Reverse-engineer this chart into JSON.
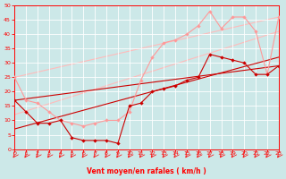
{
  "bg_color": "#cce8e8",
  "grid_color": "#ffffff",
  "line_dark": "#cc0000",
  "line_light": "#ff9999",
  "line_lighter": "#ffbbbb",
  "xlabel": "Vent moyen/en rafales ( km/h )",
  "xlim": [
    0,
    23
  ],
  "ylim": [
    0,
    50
  ],
  "xticks": [
    0,
    1,
    2,
    3,
    4,
    5,
    6,
    7,
    8,
    9,
    10,
    11,
    12,
    13,
    14,
    15,
    16,
    17,
    18,
    19,
    20,
    21,
    22,
    23
  ],
  "yticks": [
    0,
    5,
    10,
    15,
    20,
    25,
    30,
    35,
    40,
    45,
    50
  ],
  "series1_x": [
    0,
    1,
    2,
    3,
    4,
    5,
    6,
    7,
    8,
    9,
    10,
    11,
    12,
    13,
    14,
    15,
    16,
    17,
    18,
    19,
    20,
    21,
    22,
    23
  ],
  "series1_y": [
    17,
    13,
    9,
    9,
    10,
    4,
    3,
    3,
    3,
    2,
    15,
    16,
    20,
    21,
    22,
    24,
    25,
    33,
    32,
    31,
    30,
    26,
    26,
    29
  ],
  "series2_x": [
    0,
    1,
    2,
    3,
    4,
    5,
    6,
    7,
    8,
    9,
    10,
    11,
    12,
    13,
    14,
    15,
    16,
    17,
    18,
    19,
    20,
    21,
    22,
    23
  ],
  "series2_y": [
    25,
    17,
    16,
    13,
    10,
    9,
    8,
    9,
    10,
    10,
    13,
    24,
    32,
    37,
    38,
    40,
    43,
    48,
    42,
    46,
    46,
    41,
    26,
    46
  ],
  "trend1_x": [
    0,
    23
  ],
  "trend1_y": [
    17,
    29
  ],
  "trend2_x": [
    0,
    23
  ],
  "trend2_y": [
    25,
    46
  ],
  "trend3_x": [
    0,
    23
  ],
  "trend3_y": [
    12,
    41
  ],
  "trend4_x": [
    0,
    23
  ],
  "trend4_y": [
    7,
    32
  ]
}
